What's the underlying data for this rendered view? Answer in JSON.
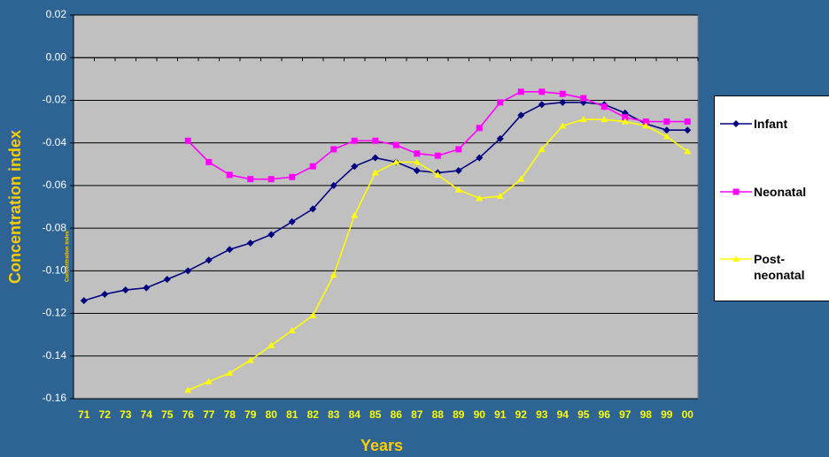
{
  "chart_data": {
    "type": "line",
    "y_label": "Concentration index",
    "x_label": "Years",
    "categories": [
      "71",
      "72",
      "73",
      "74",
      "75",
      "76",
      "77",
      "78",
      "79",
      "80",
      "81",
      "82",
      "83",
      "84",
      "85",
      "86",
      "87",
      "88",
      "89",
      "90",
      "91",
      "92",
      "93",
      "94",
      "95",
      "96",
      "97",
      "98",
      "99",
      "00"
    ],
    "series": [
      {
        "name": "Infant",
        "color": "#000080",
        "marker": "diamond",
        "values": [
          -0.114,
          -0.111,
          -0.109,
          -0.108,
          -0.104,
          -0.1,
          -0.095,
          -0.09,
          -0.087,
          -0.083,
          -0.077,
          -0.071,
          -0.06,
          -0.051,
          -0.047,
          -0.049,
          -0.053,
          -0.054,
          -0.053,
          -0.047,
          -0.038,
          -0.027,
          -0.022,
          -0.021,
          -0.021,
          -0.022,
          -0.026,
          -0.031,
          -0.034,
          -0.034
        ]
      },
      {
        "name": "Neonatal",
        "color": "#ff00ff",
        "marker": "square",
        "values": [
          null,
          null,
          null,
          null,
          null,
          -0.039,
          -0.049,
          -0.055,
          -0.057,
          -0.057,
          -0.056,
          -0.051,
          -0.043,
          -0.039,
          -0.039,
          -0.041,
          -0.045,
          -0.046,
          -0.043,
          -0.033,
          -0.021,
          -0.016,
          -0.016,
          -0.017,
          -0.019,
          -0.023,
          -0.028,
          -0.03,
          -0.03,
          -0.03
        ]
      },
      {
        "name": "Post-neonatal",
        "color": "#ffff00",
        "marker": "triangle",
        "values": [
          null,
          null,
          null,
          null,
          null,
          -0.156,
          -0.152,
          -0.148,
          -0.142,
          -0.135,
          -0.128,
          -0.121,
          -0.102,
          -0.074,
          -0.054,
          -0.049,
          -0.049,
          -0.055,
          -0.062,
          -0.066,
          -0.065,
          -0.057,
          -0.043,
          -0.032,
          -0.029,
          -0.029,
          -0.03,
          -0.032,
          -0.037,
          -0.044
        ]
      }
    ],
    "ylim": [
      -0.16,
      0.02
    ],
    "yticks": [
      0.02,
      {
        "value": 0,
        "label": "0.00"
      },
      -0.02,
      -0.04,
      -0.06,
      -0.08,
      {
        "value": -0.1,
        "label": "-0.10"
      },
      -0.12,
      -0.14,
      -0.16
    ],
    "grid": true
  }
}
